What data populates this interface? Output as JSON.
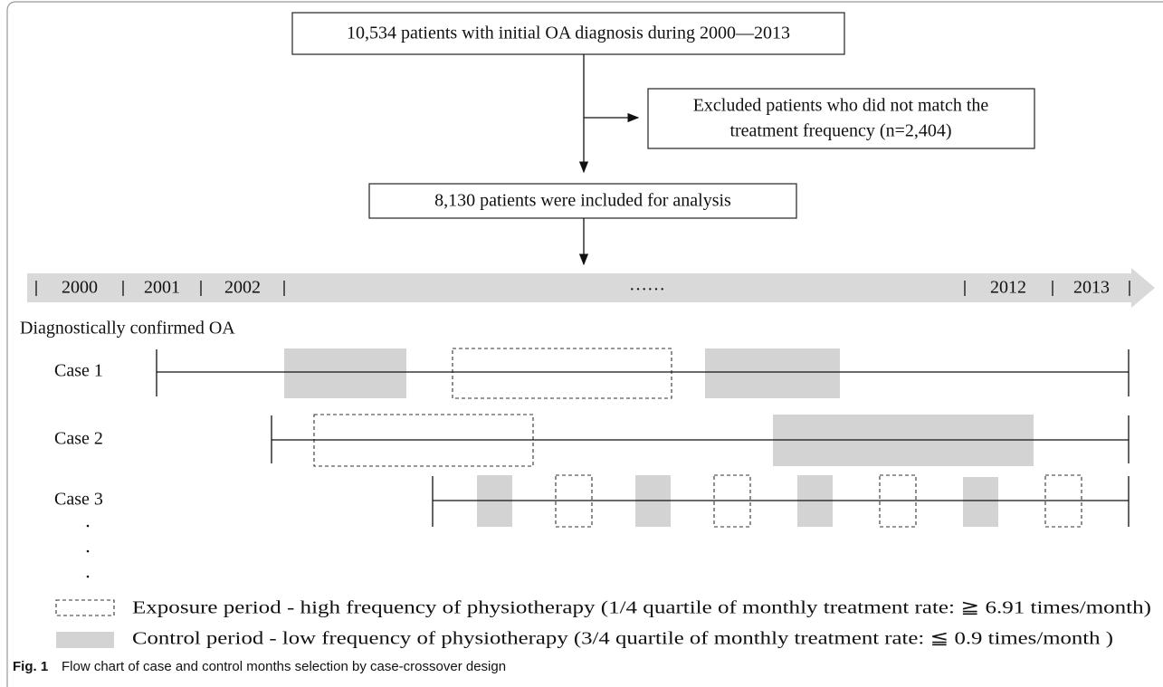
{
  "boxes": {
    "initial": "10,534 patients with initial OA diagnosis during 2000—2013",
    "excluded": [
      "Excluded patients who did not match the",
      "treatment frequency (n=2,404)"
    ],
    "included": "8,130 patients  were included for analysis"
  },
  "timeline": {
    "years": [
      "2000",
      "2001",
      "2002",
      "2012",
      "2013"
    ],
    "ellipsis": "……"
  },
  "cases": {
    "heading": "Diagnostically  confirmed OA",
    "labels": [
      "Case 1",
      "Case 2",
      "Case 3"
    ]
  },
  "legend": {
    "exposure": "Exposure period - high frequency of physiotherapy (1/4 quartile of monthly treatment rate: ≧ 6.91 times/month)",
    "control": "Control period - low frequency of  physiotherapy (3/4 quartile of monthly treatment rate: ≦ 0.9 times/month )"
  },
  "caption": {
    "label": "Fig. 1",
    "text": "Flow chart of case and control months selection by case-crossover design"
  }
}
